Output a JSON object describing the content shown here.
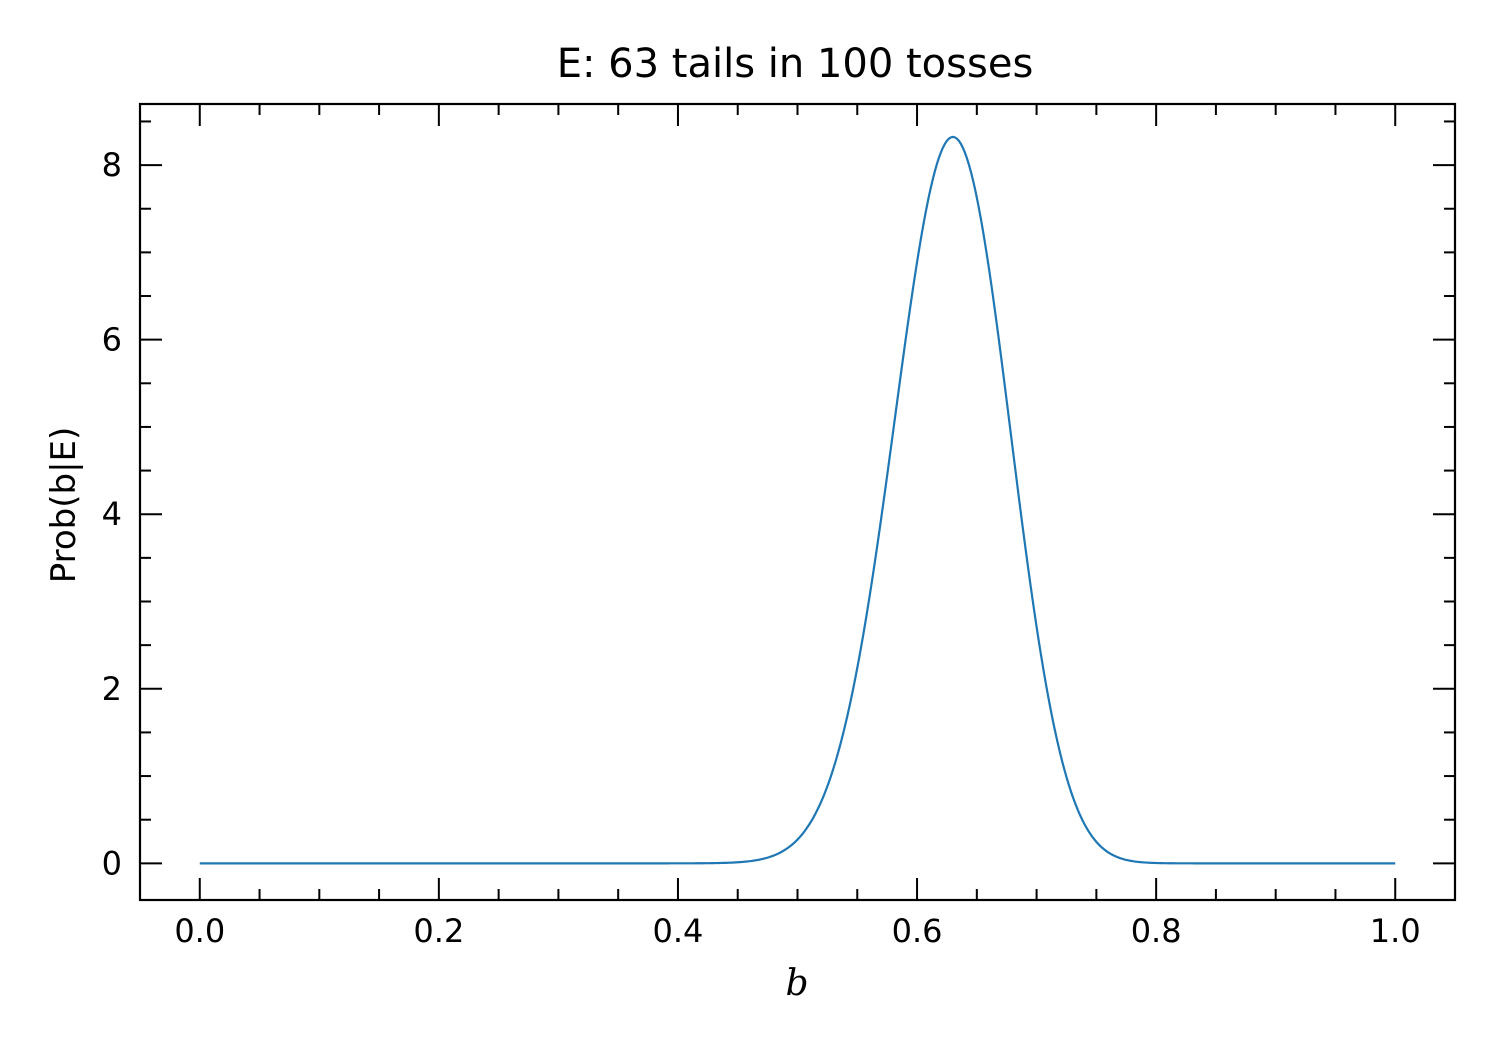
{
  "chart_data": {
    "type": "line",
    "title": "E: 63 tails in 100 tosses",
    "xlabel": "b",
    "ylabel": "Prob(b|E)",
    "xlim": [
      -0.05,
      1.05
    ],
    "ylim": [
      -0.42,
      8.7
    ],
    "x_ticks": [
      0.0,
      0.2,
      0.4,
      0.6,
      0.8,
      1.0
    ],
    "x_tick_labels": [
      "0.0",
      "0.2",
      "0.4",
      "0.6",
      "0.8",
      "1.0"
    ],
    "y_ticks": [
      0,
      2,
      4,
      6,
      8
    ],
    "y_tick_labels": [
      "0",
      "2",
      "4",
      "6",
      "8"
    ],
    "x_minor_step": 0.05,
    "y_minor_step": 0.5,
    "grid": false,
    "series": [
      {
        "color": "#1f77b4",
        "distribution": "binomial-posterior",
        "tails": 63,
        "tosses": 100,
        "x_range": [
          0.0,
          1.0
        ],
        "peak": {
          "x": 0.63,
          "y": 8.33
        },
        "points": [
          [
            0.0,
            0.0
          ],
          [
            0.4,
            0.0
          ],
          [
            0.45,
            0.03
          ],
          [
            0.5,
            0.37
          ],
          [
            0.55,
            2.07
          ],
          [
            0.6,
            6.55
          ],
          [
            0.63,
            8.33
          ],
          [
            0.65,
            7.86
          ],
          [
            0.7,
            3.9
          ],
          [
            0.75,
            0.54
          ],
          [
            0.8,
            0.02
          ],
          [
            0.85,
            0.0
          ],
          [
            1.0,
            0.0
          ]
        ]
      }
    ]
  }
}
